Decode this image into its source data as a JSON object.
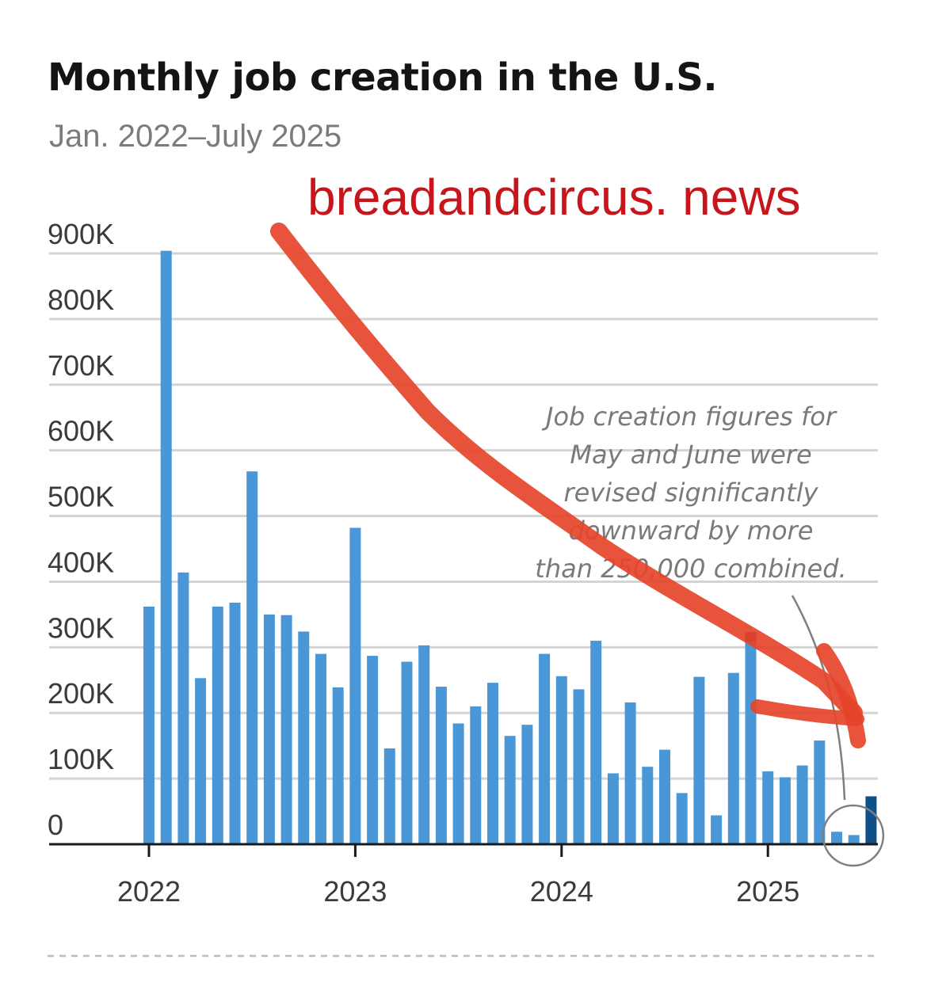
{
  "chart_data": {
    "type": "bar",
    "title": "Monthly job creation in the U.S.",
    "subtitle": "Jan. 2022–July 2025",
    "xlabel": "",
    "ylabel": "",
    "ylim": [
      0,
      900000
    ],
    "yticks": [
      {
        "value": 0,
        "label": "0"
      },
      {
        "value": 100000,
        "label": "100K"
      },
      {
        "value": 200000,
        "label": "200K"
      },
      {
        "value": 300000,
        "label": "300K"
      },
      {
        "value": 400000,
        "label": "400K"
      },
      {
        "value": 500000,
        "label": "500K"
      },
      {
        "value": 600000,
        "label": "600K"
      },
      {
        "value": 700000,
        "label": "700K"
      },
      {
        "value": 800000,
        "label": "800K"
      },
      {
        "value": 900000,
        "label": "900K"
      }
    ],
    "xticks": [
      "2022",
      "2023",
      "2024",
      "2025"
    ],
    "grid": true,
    "months": [
      "2022-01",
      "2022-02",
      "2022-03",
      "2022-04",
      "2022-05",
      "2022-06",
      "2022-07",
      "2022-08",
      "2022-09",
      "2022-10",
      "2022-11",
      "2022-12",
      "2023-01",
      "2023-02",
      "2023-03",
      "2023-04",
      "2023-05",
      "2023-06",
      "2023-07",
      "2023-08",
      "2023-09",
      "2023-10",
      "2023-11",
      "2023-12",
      "2024-01",
      "2024-02",
      "2024-03",
      "2024-04",
      "2024-05",
      "2024-06",
      "2024-07",
      "2024-08",
      "2024-09",
      "2024-10",
      "2024-11",
      "2024-12",
      "2025-01",
      "2025-02",
      "2025-03",
      "2025-04",
      "2025-05",
      "2025-06",
      "2025-07"
    ],
    "values": [
      362000,
      904000,
      414000,
      253000,
      362000,
      368000,
      568000,
      350000,
      349000,
      324000,
      290000,
      239000,
      482000,
      287000,
      146000,
      278000,
      303000,
      240000,
      184000,
      210000,
      246000,
      165000,
      182000,
      290000,
      256000,
      236000,
      310000,
      108000,
      216000,
      118000,
      144000,
      78000,
      255000,
      44000,
      261000,
      323000,
      111000,
      102000,
      120000,
      158000,
      19000,
      14000,
      73000
    ],
    "highlighted": [
      "2024-12",
      "2025-07"
    ],
    "colors": {
      "bar": "#4a97d8",
      "highlight": "#0f4f8a",
      "highlight_dark": "#2b2b2b",
      "grid": "#d4d4d4",
      "axis": "#1a1a1a"
    },
    "annotation": "Job creation figures for May and June were revised significantly downward by more than 250,000 combined.",
    "annotation_lines": [
      "Job creation figures for",
      "May and June were",
      "revised significantly",
      "downward by more",
      "than 250,000 combined."
    ]
  },
  "watermark": "breadandcircus. news",
  "overlay": {
    "arrow_color": "#e5442a",
    "circle_target": [
      "2025-05",
      "2025-06"
    ]
  }
}
